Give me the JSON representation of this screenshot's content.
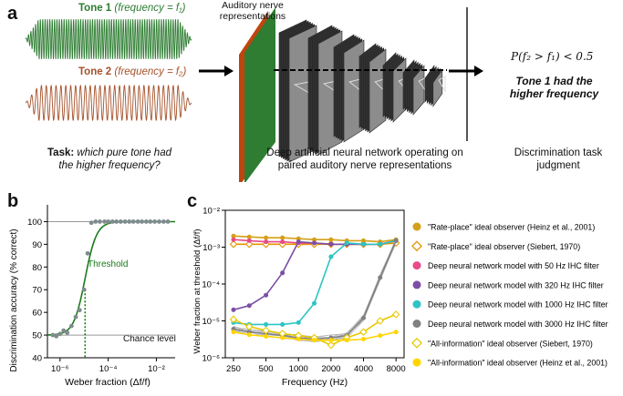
{
  "panel_a": {
    "letter": "a",
    "tone1": {
      "name": "Tone 1",
      "freq": "(frequency = f₁)",
      "color": "#2e7d32"
    },
    "tone2": {
      "name": "Tone 2",
      "freq": "(frequency = f₂)",
      "color": "#a5522b"
    },
    "an_label": "Auditory nerve representations",
    "task_bold": "Task:",
    "task_italic": "which pure tone had the higher frequency?",
    "dnn_caption": "Deep artificial neural network operating on paired auditory nerve representations",
    "prob_text": "P(f₂ > f₁) < 0.5",
    "judgment_line1": "Tone 1 had the",
    "judgment_line2": "higher frequency",
    "disc_caption": "Discrimination task judgment"
  },
  "panel_b": {
    "letter": "b",
    "threshold_label": "Threshold",
    "chance_label": "Chance level",
    "chart_data": {
      "type": "scatter",
      "xlabel": "Weber fraction (Δf/f)",
      "ylabel": "Discrimination accuracy (% correct)",
      "xscale": "log",
      "xlim": [
        3e-07,
        0.06
      ],
      "ylim": [
        40,
        105
      ],
      "x_ticks": [
        "10⁻⁶",
        "10⁻⁴",
        "10⁻²"
      ],
      "y_ticks": [
        "40",
        "50",
        "60",
        "70",
        "80",
        "90",
        "100"
      ],
      "points": {
        "x": [
          5e-07,
          7e-07,
          1e-06,
          1.4e-06,
          2e-06,
          3e-06,
          4.5e-06,
          6.5e-06,
          1e-05,
          1.4e-05,
          2e-05,
          3e-05,
          4.5e-05,
          7e-05,
          0.0001,
          0.00015,
          0.00022,
          0.00033,
          0.0005,
          0.00075,
          0.0011,
          0.0017,
          0.0025,
          0.0038,
          0.0056,
          0.0085,
          0.013,
          0.02,
          0.03
        ],
        "y": [
          50,
          49.5,
          50.5,
          52,
          51,
          54,
          58,
          61,
          70,
          86,
          99.5,
          100,
          100,
          100,
          100,
          100,
          100,
          100,
          100,
          100,
          100,
          100,
          100,
          100,
          100,
          100,
          100,
          100,
          100
        ]
      },
      "threshold_x": 1.1e-05,
      "chance": 50,
      "colors": {
        "points": "#7f8c8d",
        "curve": "#1b7a1b"
      }
    }
  },
  "panel_c": {
    "letter": "c",
    "chart_data": {
      "type": "line",
      "xlabel": "Frequency (Hz)",
      "ylabel": "Weber fraction at threshold (Δf/f)",
      "yscale": "log",
      "xscale": "log",
      "x_ticks": [
        "250",
        "500",
        "1000",
        "2000",
        "4000",
        "8000"
      ],
      "x": [
        250,
        350,
        500,
        710,
        1000,
        1400,
        2000,
        2800,
        4000,
        5700,
        8000
      ],
      "ylim": [
        1e-06,
        0.01
      ],
      "y_ticks": [
        "10⁻⁶",
        "10⁻⁵",
        "10⁻⁴",
        "10⁻³",
        "10⁻²"
      ],
      "series": [
        {
          "name": "\"Rate-place\" ideal observer (Heinz et al., 2001)",
          "color": "#d4a017",
          "marker": "circle",
          "values": [
            0.002,
            0.0019,
            0.0018,
            0.0018,
            0.0017,
            0.0016,
            0.0016,
            0.0015,
            0.0015,
            0.0014,
            0.0016
          ]
        },
        {
          "name": "\"Rate-place\" ideal observer (Siebert, 1970)",
          "color": "#e69500",
          "marker": "diamond-open",
          "values": [
            0.0012,
            0.0012,
            0.0012,
            0.0012,
            0.0012,
            0.0012,
            0.0012,
            0.0012,
            0.0012,
            0.0012,
            0.0013
          ]
        },
        {
          "name": "Deep neural network model with 50 Hz IHC filter",
          "color": "#e84a8a",
          "marker": "circle",
          "values": [
            0.0016,
            0.0015,
            0.0014,
            0.0014,
            0.0013,
            0.0013,
            0.0012,
            0.0012,
            0.0012,
            0.0012,
            0.0015
          ]
        },
        {
          "name": "Deep neural network model with 320 Hz IHC filter",
          "color": "#7b4fa6",
          "marker": "circle",
          "values": [
            2e-05,
            2.6e-05,
            5e-05,
            0.0002,
            0.0014,
            0.0013,
            0.0012,
            0.0012,
            0.0012,
            0.0012,
            0.0015
          ]
        },
        {
          "name": "Deep neural network model with 1000 Hz IHC filter",
          "color": "#2ec4c4",
          "marker": "circle",
          "values": [
            9e-06,
            8e-06,
            8e-06,
            8e-06,
            9e-06,
            3e-05,
            0.00055,
            0.0013,
            0.0012,
            0.0012,
            0.0015
          ]
        },
        {
          "name": "Deep neural network model with 3000 Hz IHC filter",
          "color": "#808080",
          "marker": "circle",
          "values": [
            6e-06,
            5e-06,
            4.5e-06,
            4e-06,
            3.5e-06,
            3.2e-06,
            3.5e-06,
            4e-06,
            1.2e-05,
            0.00015,
            0.0015
          ]
        },
        {
          "name": "\"All-information\" ideal observer (Siebert, 1970)",
          "color": "#e8c800",
          "marker": "diamond-open",
          "values": [
            1.1e-05,
            7e-06,
            5.5e-06,
            4.5e-06,
            4e-06,
            3.5e-06,
            2.2e-06,
            3.5e-06,
            5e-06,
            1e-05,
            1.5e-05
          ]
        },
        {
          "name": "\"All-information\" ideal observer (Heinz et al., 2001)",
          "color": "#ffd500",
          "marker": "circle",
          "values": [
            5e-06,
            4.2e-06,
            3.8e-06,
            3.5e-06,
            3.2e-06,
            3e-06,
            3e-06,
            3e-06,
            3.2e-06,
            4e-06,
            5e-06
          ]
        }
      ]
    }
  }
}
